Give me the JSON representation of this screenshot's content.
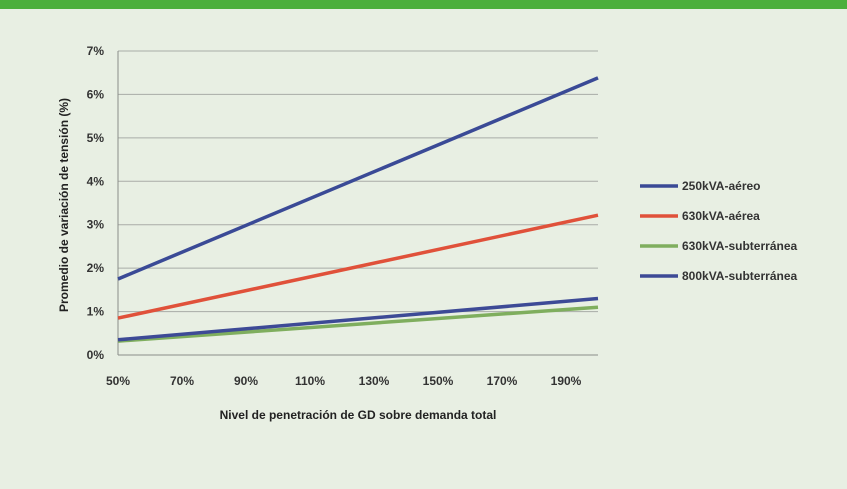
{
  "colors": {
    "background": "#e8efe3",
    "top_bar": "#4caf3c",
    "gridline": "#a9aca7"
  },
  "chart_data": {
    "type": "line",
    "title": "",
    "xlabel": "Nivel de penetración de GD sobre demanda total",
    "ylabel": "Promedio de variación de tensión (%)",
    "x_ticks": [
      "50%",
      "70%",
      "90%",
      "110%",
      "130%",
      "150%",
      "170%",
      "190%"
    ],
    "x_ticks_values": [
      50,
      70,
      90,
      110,
      130,
      150,
      170,
      190
    ],
    "y_ticks": [
      "0%",
      "1%",
      "2%",
      "3%",
      "4%",
      "5%",
      "6%",
      "7%"
    ],
    "y_ticks_values": [
      0,
      1,
      2,
      3,
      4,
      5,
      6,
      7
    ],
    "xlim": [
      50,
      200
    ],
    "ylim": [
      0,
      7
    ],
    "grid": "horizontal",
    "legend_position": "right",
    "series": [
      {
        "name": "250kVA-aéreo",
        "color": "#3a4a96",
        "x": [
          50,
          200
        ],
        "values": [
          1.75,
          6.38
        ]
      },
      {
        "name": "630kVA-aérea",
        "color": "#e0513a",
        "x": [
          50,
          200
        ],
        "values": [
          0.85,
          3.22
        ]
      },
      {
        "name": "630kVA-subterránea",
        "color": "#7fae5e",
        "x": [
          50,
          200
        ],
        "values": [
          0.32,
          1.1
        ]
      },
      {
        "name": "800kVA-subterránea",
        "color": "#3d4a96",
        "x": [
          50,
          200
        ],
        "values": [
          0.35,
          1.3
        ]
      }
    ]
  }
}
